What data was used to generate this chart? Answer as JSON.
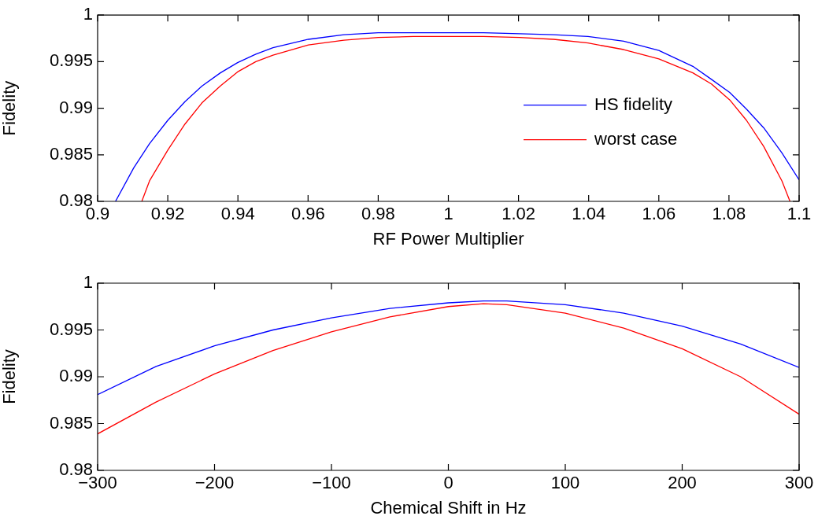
{
  "chart_data": [
    {
      "type": "line",
      "xlabel": "RF Power Multiplier",
      "ylabel": "Fidelity",
      "xlim": [
        0.9,
        1.1
      ],
      "ylim": [
        0.98,
        1
      ],
      "xticks": [
        0.9,
        0.92,
        0.94,
        0.96,
        0.98,
        1,
        1.02,
        1.04,
        1.06,
        1.08,
        1.1
      ],
      "yticks": [
        0.98,
        0.985,
        0.99,
        0.995,
        1
      ],
      "grid": false,
      "legend": "right",
      "marker": "none",
      "series": [
        {
          "name": "HS fidelity",
          "color": "#0000ff",
          "x": [
            0.9051,
            0.9103,
            0.9148,
            0.92,
            0.9249,
            0.9298,
            0.935,
            0.9399,
            0.9451,
            0.95,
            0.9601,
            0.9702,
            0.98,
            0.99,
            1.0,
            1.01,
            1.0203,
            1.03,
            1.0398,
            1.05,
            1.06,
            1.0697,
            1.075,
            1.0802,
            1.085,
            1.0899,
            1.0951,
            1.1
          ],
          "values": [
            0.98,
            0.9836,
            0.9862,
            0.9887,
            0.9907,
            0.9924,
            0.9938,
            0.9949,
            0.9958,
            0.9965,
            0.9974,
            0.9979,
            0.9981,
            0.9981,
            0.9981,
            0.9981,
            0.998,
            0.9979,
            0.9977,
            0.9972,
            0.9962,
            0.9945,
            0.9931,
            0.9917,
            0.9899,
            0.9879,
            0.9852,
            0.9823
          ]
        },
        {
          "name": "worst case",
          "color": "#ff0000",
          "x": [
            0.9126,
            0.9148,
            0.92,
            0.9249,
            0.9298,
            0.935,
            0.9399,
            0.9451,
            0.95,
            0.9601,
            0.9702,
            0.98,
            0.99,
            1.0,
            1.01,
            1.0203,
            1.03,
            1.0398,
            1.05,
            1.06,
            1.0697,
            1.075,
            1.0802,
            1.085,
            1.0899,
            1.0951,
            1.0974
          ],
          "values": [
            0.98,
            0.9822,
            0.9855,
            0.9883,
            0.9906,
            0.9924,
            0.9939,
            0.995,
            0.9957,
            0.9968,
            0.9973,
            0.9976,
            0.9977,
            0.9977,
            0.9977,
            0.9976,
            0.9974,
            0.997,
            0.9963,
            0.9953,
            0.9938,
            0.9926,
            0.9909,
            0.9887,
            0.9859,
            0.9822,
            0.98
          ]
        }
      ]
    },
    {
      "type": "line",
      "xlabel": "Chemical Shift in Hz",
      "ylabel": "Fidelity",
      "xlim": [
        -300,
        300
      ],
      "ylim": [
        0.98,
        1
      ],
      "xticks": [
        {
          "value": -300,
          "label": "−300"
        },
        {
          "value": -200,
          "label": "−200"
        },
        {
          "value": -100,
          "label": "−100"
        },
        0,
        100,
        200,
        300
      ],
      "yticks": [
        0.98,
        0.985,
        0.99,
        0.995,
        1
      ],
      "grid": false,
      "legend": false,
      "marker": "none",
      "series": [
        {
          "color": "#0000ff",
          "x": [
            -300,
            -250,
            -200,
            -150,
            -100,
            -50,
            0,
            30,
            50,
            100,
            150,
            200,
            250,
            300
          ],
          "values": [
            0.9881,
            0.9911,
            0.9933,
            0.995,
            0.9963,
            0.9973,
            0.9979,
            0.9981,
            0.9981,
            0.9977,
            0.9968,
            0.9954,
            0.9935,
            0.991
          ]
        },
        {
          "color": "#ff0000",
          "x": [
            -300,
            -250,
            -200,
            -150,
            -100,
            -50,
            0,
            30,
            50,
            100,
            150,
            200,
            250,
            300
          ],
          "values": [
            0.9839,
            0.9873,
            0.9903,
            0.9928,
            0.9948,
            0.9964,
            0.9975,
            0.9978,
            0.9977,
            0.9968,
            0.9952,
            0.993,
            0.99,
            0.986
          ]
        }
      ]
    }
  ]
}
